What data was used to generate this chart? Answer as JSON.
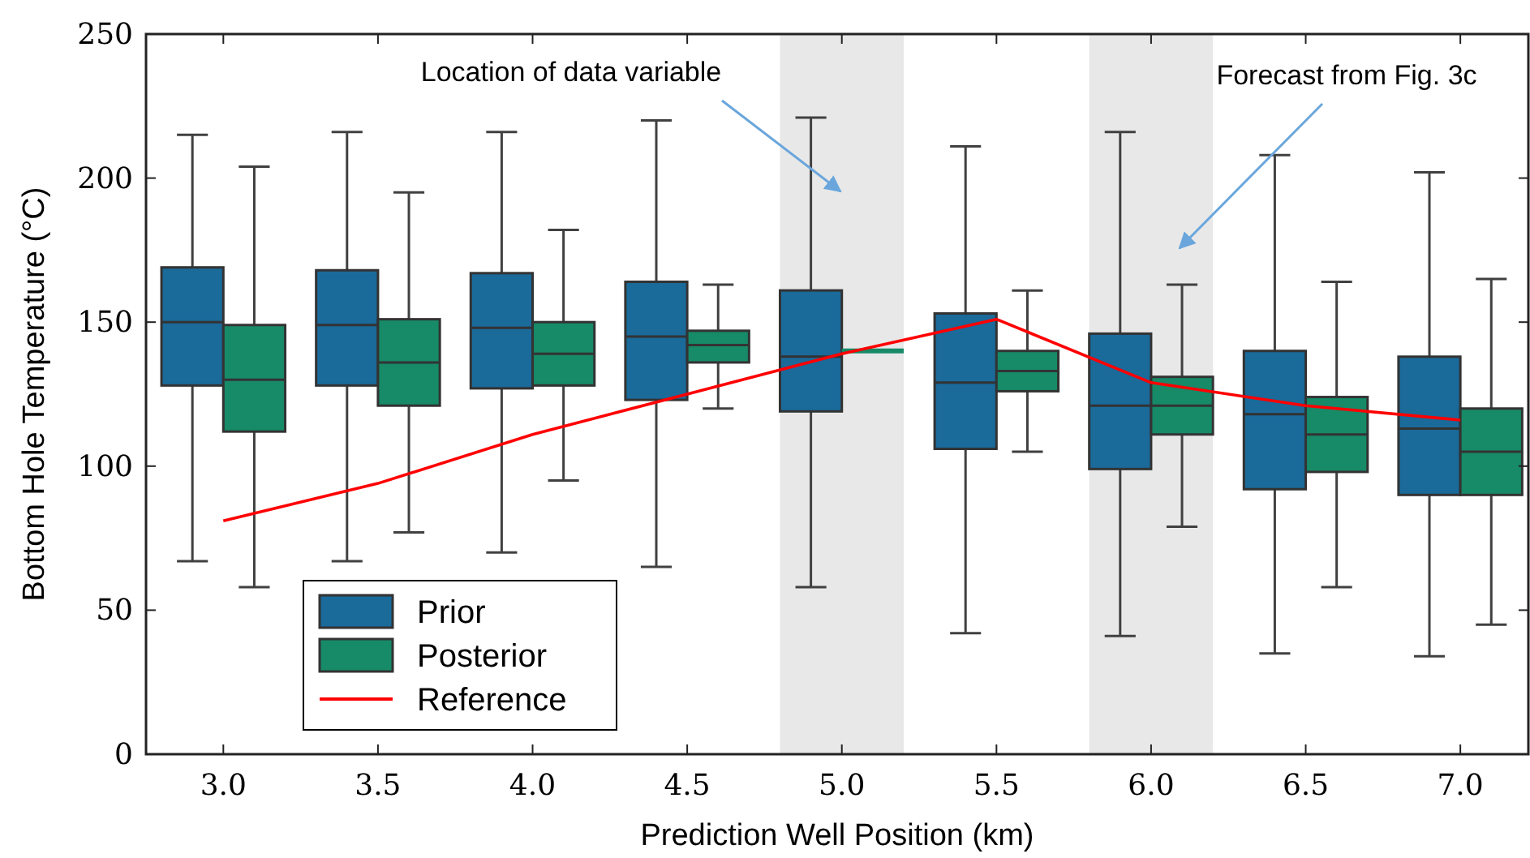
{
  "chart_data": {
    "type": "box",
    "xlabel": "Prediction Well Position (km)",
    "ylabel": "Bottom Hole Temperature (°C)",
    "x": [
      3.0,
      3.5,
      4.0,
      4.5,
      5.0,
      5.5,
      6.0,
      6.5,
      7.0
    ],
    "xlim": [
      2.75,
      7.22
    ],
    "xticks": [
      {
        "value": 3.0,
        "label": "3.0"
      },
      {
        "value": 3.5,
        "label": "3.5"
      },
      {
        "value": 4.0,
        "label": "4.0"
      },
      {
        "value": 4.5,
        "label": "4.5"
      },
      {
        "value": 5.0,
        "label": "5.0"
      },
      {
        "value": 5.5,
        "label": "5.5"
      },
      {
        "value": 6.0,
        "label": "6.0"
      },
      {
        "value": 6.5,
        "label": "6.5"
      },
      {
        "value": 7.0,
        "label": "7.0"
      }
    ],
    "ylim": [
      0,
      250
    ],
    "yticks": [
      0,
      50,
      100,
      150,
      200,
      250
    ],
    "grid": false,
    "legend": "bottom left",
    "series": [
      {
        "name": "Prior",
        "color": "#1a6a9a",
        "boxes": [
          {
            "low": 67,
            "q1": 128,
            "median": 150,
            "q3": 169,
            "high": 215
          },
          {
            "low": 67,
            "q1": 128,
            "median": 149,
            "q3": 168,
            "high": 216
          },
          {
            "low": 70,
            "q1": 127,
            "median": 148,
            "q3": 167,
            "high": 216
          },
          {
            "low": 65,
            "q1": 123,
            "median": 145,
            "q3": 164,
            "high": 220
          },
          {
            "low": 58,
            "q1": 119,
            "median": 138,
            "q3": 161,
            "high": 221
          },
          {
            "low": 42,
            "q1": 106,
            "median": 129,
            "q3": 153,
            "high": 211
          },
          {
            "low": 41,
            "q1": 99,
            "median": 121,
            "q3": 146,
            "high": 216
          },
          {
            "low": 35,
            "q1": 92,
            "median": 118,
            "q3": 140,
            "high": 208
          },
          {
            "low": 34,
            "q1": 90,
            "median": 113,
            "q3": 138,
            "high": 202
          }
        ]
      },
      {
        "name": "Posterior",
        "color": "#178a68",
        "boxes": [
          {
            "low": 58,
            "q1": 112,
            "median": 130,
            "q3": 149,
            "high": 204
          },
          {
            "low": 77,
            "q1": 121,
            "median": 136,
            "q3": 151,
            "high": 195
          },
          {
            "low": 95,
            "q1": 128,
            "median": 139,
            "q3": 150,
            "high": 182
          },
          {
            "low": 120,
            "q1": 136,
            "median": 142,
            "q3": 147,
            "high": 163
          },
          {
            "low": 140,
            "q1": 140,
            "median": 140,
            "q3": 140,
            "high": 140
          },
          {
            "low": 105,
            "q1": 126,
            "median": 133,
            "q3": 140,
            "high": 161
          },
          {
            "low": 79,
            "q1": 111,
            "median": 121,
            "q3": 131,
            "high": 163
          },
          {
            "low": 58,
            "q1": 98,
            "median": 111,
            "q3": 124,
            "high": 164
          },
          {
            "low": 45,
            "q1": 90,
            "median": 105,
            "q3": 120,
            "high": 165
          }
        ]
      },
      {
        "name": "Reference",
        "type": "line",
        "color": "#ff0000",
        "x": [
          3.0,
          3.5,
          4.0,
          4.5,
          5.0,
          5.5,
          6.0,
          6.5,
          7.0
        ],
        "values": [
          81,
          94,
          111,
          125,
          139,
          151,
          129,
          121,
          116
        ]
      }
    ],
    "bands": [
      {
        "axis": "x",
        "from": 4.8,
        "to": 5.2,
        "color": "#e8e8e8"
      },
      {
        "axis": "x",
        "from": 5.8,
        "to": 6.2,
        "color": "#e8e8e8"
      }
    ],
    "annotations": [
      "Location of data variable",
      "Forecast from Fig. 3c"
    ]
  }
}
